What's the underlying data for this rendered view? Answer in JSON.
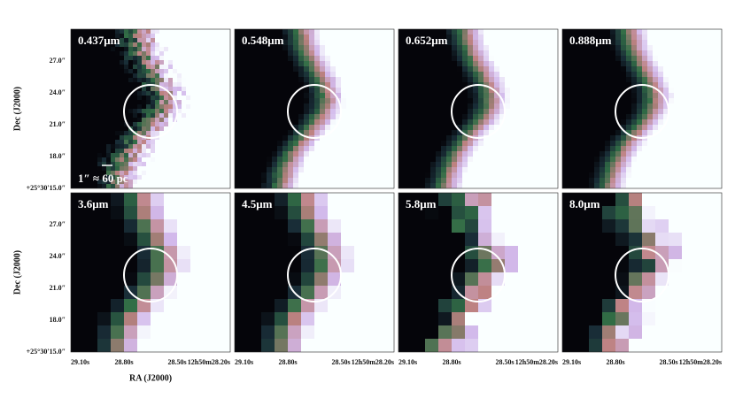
{
  "figure": {
    "panels": [
      {
        "label": "0.437μm"
      },
      {
        "label": "0.548μm"
      },
      {
        "label": "0.652μm"
      },
      {
        "label": "0.888μm"
      },
      {
        "label": "3.6μm"
      },
      {
        "label": "4.5μm"
      },
      {
        "label": "5.8μm"
      },
      {
        "label": "8.0μm"
      }
    ],
    "y_axis": {
      "label": "Dec (J2000)",
      "ticks": [
        "27.0″",
        "24.0″",
        "21.0″",
        "18.0″",
        "+25°30′15.0″"
      ]
    },
    "x_axis": {
      "label": "RA (J2000)",
      "ticks": [
        "29.10s",
        "28.80s",
        "28.50s",
        "12h50m28.20s"
      ]
    },
    "scale_bar": "1″ ≈ 60 pc"
  }
}
